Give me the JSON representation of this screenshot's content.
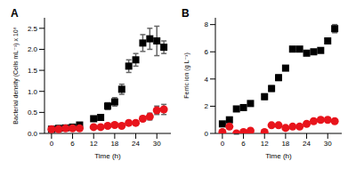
{
  "chart_data": [
    {
      "type": "scatter",
      "title": "A",
      "x_label": "Time (h)",
      "y_label": "Bacterial density (Cells mL⁻¹) x 10⁸",
      "xlim": [
        -2,
        34
      ],
      "xticks": [
        0,
        6,
        12,
        18,
        24,
        30
      ],
      "ylim": [
        0,
        2.75
      ],
      "yticks": [
        {
          "value": 0,
          "label": "0.0"
        },
        {
          "value": 0.5,
          "label": "0.5"
        },
        {
          "value": 1,
          "label": "1.0"
        },
        {
          "value": 1.5,
          "label": "1.5"
        },
        {
          "value": 2,
          "label": "2.0"
        },
        {
          "value": 2.5,
          "label": "2.5"
        }
      ],
      "x": [
        0,
        2,
        4,
        6,
        8,
        12,
        14,
        16,
        18,
        20,
        22,
        24,
        26,
        28,
        30,
        32
      ],
      "series": [
        {
          "color": "#000000",
          "marker": "square",
          "values": [
            0.1,
            0.12,
            0.13,
            0.15,
            0.2,
            0.35,
            0.38,
            0.65,
            0.75,
            1.05,
            1.6,
            1.75,
            2.15,
            2.25,
            2.2,
            2.05
          ],
          "errors": [
            0.02,
            0.02,
            0.02,
            0.03,
            0.05,
            0.05,
            0.05,
            0.08,
            0.1,
            0.12,
            0.15,
            0.15,
            0.2,
            0.25,
            0.35,
            0.15
          ]
        },
        {
          "color": "#e8141c",
          "marker": "circle",
          "values": [
            0.1,
            0.1,
            0.12,
            0.12,
            0.12,
            0.15,
            0.15,
            0.18,
            0.2,
            0.18,
            0.25,
            0.25,
            0.35,
            0.4,
            0.55,
            0.57
          ],
          "errors": [
            0.02,
            0.02,
            0.02,
            0.02,
            0.02,
            0.03,
            0.03,
            0.03,
            0.04,
            0.04,
            0.05,
            0.05,
            0.06,
            0.08,
            0.1,
            0.12
          ]
        }
      ]
    },
    {
      "type": "scatter",
      "title": "B",
      "x_label": "Time (h)",
      "y_label": "Ferric ion (g L⁻¹)",
      "xlim": [
        -2,
        34
      ],
      "xticks": [
        0,
        6,
        12,
        18,
        24,
        30
      ],
      "ylim": [
        0,
        8.5
      ],
      "yticks": [
        0,
        2,
        4,
        6,
        8
      ],
      "x": [
        0,
        2,
        4,
        6,
        8,
        12,
        14,
        16,
        18,
        20,
        22,
        24,
        26,
        28,
        30,
        32
      ],
      "series": [
        {
          "color": "#000000",
          "marker": "square",
          "values": [
            0.7,
            1.0,
            1.8,
            1.9,
            2.2,
            2.7,
            3.3,
            4.1,
            4.8,
            6.2,
            6.2,
            5.9,
            6.0,
            6.1,
            6.8,
            7.7
          ],
          "errors": [
            0.1,
            0.1,
            0.15,
            0.1,
            0.15,
            0.2,
            0.2,
            0.2,
            0.15,
            0.1,
            0.1,
            0.15,
            0.1,
            0.15,
            0.2,
            0.3
          ]
        },
        {
          "color": "#e8141c",
          "marker": "circle",
          "values": [
            0.1,
            0.5,
            0.0,
            0.1,
            0.2,
            0.1,
            0.6,
            0.6,
            0.4,
            0.5,
            0.5,
            0.7,
            0.9,
            1.0,
            1.0,
            0.9
          ],
          "errors": [
            0.05,
            0.1,
            0.05,
            0.05,
            0.1,
            0.05,
            0.1,
            0.1,
            0.1,
            0.1,
            0.1,
            0.1,
            0.1,
            0.15,
            0.15,
            0.1
          ]
        }
      ]
    }
  ]
}
